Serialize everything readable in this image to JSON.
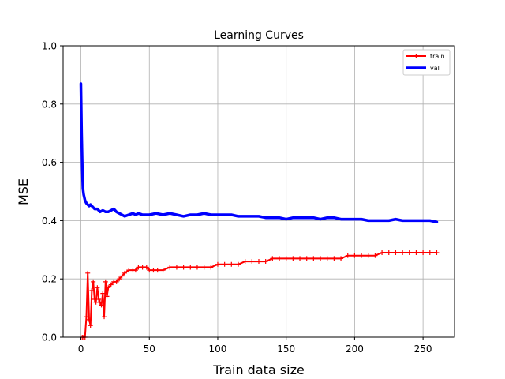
{
  "chart_data": {
    "type": "line",
    "title": "Learning Curves",
    "xlabel": "Train data size",
    "ylabel": "MSE",
    "xlim": [
      -13,
      273
    ],
    "ylim": [
      0,
      1.0
    ],
    "xticks": [
      0,
      50,
      100,
      150,
      200,
      250
    ],
    "yticks": [
      0.0,
      0.2,
      0.4,
      0.6,
      0.8,
      1.0
    ],
    "ytick_labels": [
      "0.0",
      "0.2",
      "0.4",
      "0.6",
      "0.8",
      "1.0"
    ],
    "grid": true,
    "legend_position": "top-right",
    "series": [
      {
        "name": "train",
        "color": "#ff0000",
        "marker": "+",
        "x": [
          1,
          2,
          3,
          4,
          5,
          6,
          7,
          8,
          9,
          10,
          11,
          12,
          13,
          14,
          15,
          16,
          17,
          18,
          19,
          20,
          22,
          24,
          26,
          28,
          30,
          32,
          35,
          38,
          40,
          42,
          45,
          48,
          50,
          53,
          56,
          60,
          65,
          70,
          75,
          80,
          85,
          90,
          95,
          100,
          105,
          110,
          115,
          120,
          125,
          130,
          135,
          140,
          145,
          150,
          155,
          160,
          165,
          170,
          175,
          180,
          185,
          190,
          195,
          200,
          205,
          210,
          215,
          220,
          225,
          230,
          235,
          240,
          245,
          250,
          255,
          260
        ],
        "y": [
          0.0,
          0.0,
          0.0,
          0.07,
          0.22,
          0.06,
          0.04,
          0.16,
          0.19,
          0.13,
          0.12,
          0.17,
          0.13,
          0.12,
          0.11,
          0.15,
          0.07,
          0.19,
          0.14,
          0.17,
          0.18,
          0.19,
          0.19,
          0.2,
          0.21,
          0.22,
          0.23,
          0.23,
          0.23,
          0.24,
          0.24,
          0.24,
          0.23,
          0.23,
          0.23,
          0.23,
          0.24,
          0.24,
          0.24,
          0.24,
          0.24,
          0.24,
          0.24,
          0.25,
          0.25,
          0.25,
          0.25,
          0.26,
          0.26,
          0.26,
          0.26,
          0.27,
          0.27,
          0.27,
          0.27,
          0.27,
          0.27,
          0.27,
          0.27,
          0.27,
          0.27,
          0.27,
          0.28,
          0.28,
          0.28,
          0.28,
          0.28,
          0.29,
          0.29,
          0.29,
          0.29,
          0.29,
          0.29,
          0.29,
          0.29,
          0.29
        ]
      },
      {
        "name": "val",
        "color": "#0000ff",
        "marker": "",
        "x": [
          0,
          0.5,
          1,
          1.5,
          2,
          3,
          4,
          5,
          6,
          7,
          8,
          10,
          12,
          14,
          16,
          18,
          20,
          22,
          24,
          26,
          28,
          30,
          32,
          35,
          38,
          40,
          42,
          45,
          48,
          50,
          55,
          60,
          65,
          70,
          75,
          80,
          85,
          90,
          95,
          100,
          105,
          110,
          115,
          120,
          125,
          130,
          135,
          140,
          145,
          150,
          155,
          160,
          165,
          170,
          175,
          180,
          185,
          190,
          195,
          200,
          205,
          210,
          215,
          220,
          225,
          230,
          235,
          240,
          245,
          250,
          255,
          260
        ],
        "y": [
          0.87,
          0.7,
          0.58,
          0.51,
          0.49,
          0.47,
          0.46,
          0.455,
          0.45,
          0.455,
          0.45,
          0.44,
          0.44,
          0.43,
          0.435,
          0.43,
          0.43,
          0.435,
          0.44,
          0.43,
          0.425,
          0.42,
          0.415,
          0.42,
          0.425,
          0.42,
          0.425,
          0.42,
          0.42,
          0.42,
          0.425,
          0.42,
          0.425,
          0.42,
          0.415,
          0.42,
          0.42,
          0.425,
          0.42,
          0.42,
          0.42,
          0.42,
          0.415,
          0.415,
          0.415,
          0.415,
          0.41,
          0.41,
          0.41,
          0.405,
          0.41,
          0.41,
          0.41,
          0.41,
          0.405,
          0.41,
          0.41,
          0.405,
          0.405,
          0.405,
          0.405,
          0.4,
          0.4,
          0.4,
          0.4,
          0.405,
          0.4,
          0.4,
          0.4,
          0.4,
          0.4,
          0.395
        ]
      }
    ]
  }
}
